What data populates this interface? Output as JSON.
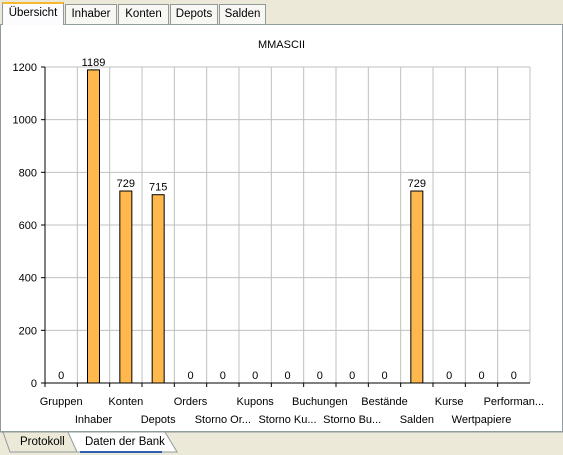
{
  "tabs": [
    {
      "label": "Übersicht",
      "active": true
    },
    {
      "label": "Inhaber",
      "active": false
    },
    {
      "label": "Konten",
      "active": false
    },
    {
      "label": "Depots",
      "active": false
    },
    {
      "label": "Salden",
      "active": false
    }
  ],
  "bottom_tabs": [
    {
      "label": "Protokoll",
      "active": false
    },
    {
      "label": "Daten der Bank",
      "active": true
    }
  ],
  "colors": {
    "bar_fill": "#ffb84d",
    "bar_stroke": "#000000",
    "grid": "#c0c0c0",
    "active_tab_accent": "#f8b830"
  },
  "chart_data": {
    "type": "bar",
    "title": "MMASCII",
    "categories": [
      "Gruppen",
      "Inhaber",
      "Konten",
      "Depots",
      "Orders",
      "Storno Or...",
      "Kupons",
      "Storno Ku...",
      "Buchungen",
      "Storno Bu...",
      "Bestände",
      "Salden",
      "Kurse",
      "Wertpapiere",
      "Performan..."
    ],
    "values": [
      0,
      1189,
      729,
      715,
      0,
      0,
      0,
      0,
      0,
      0,
      0,
      729,
      0,
      0,
      0
    ],
    "data_labels": [
      "0",
      "1189",
      "729",
      "715",
      "0",
      "0",
      "0",
      "0",
      "0",
      "0",
      "0",
      "729",
      "0",
      "0",
      "0"
    ],
    "ylim": [
      0,
      1200
    ],
    "yticks": [
      0,
      200,
      400,
      600,
      800,
      1000,
      1200
    ],
    "grid": true,
    "legend": "none"
  }
}
